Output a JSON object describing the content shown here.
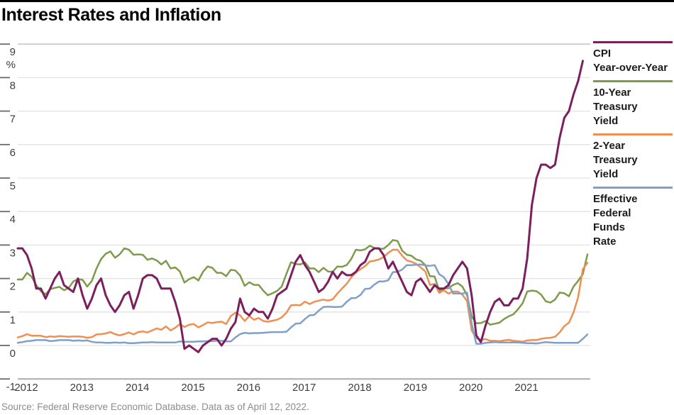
{
  "title": "Interest Rates and Inflation",
  "source": "Source: Federal Reserve Economic Database. Data as of April 12, 2022.",
  "legend": {
    "items": [
      {
        "id": "cpi",
        "label": "CPI\nYear-over-Year"
      },
      {
        "id": "treasury-10y",
        "label": "10-Year\nTreasury\nYield"
      },
      {
        "id": "treasury-2y",
        "label": "2-Year\nTreasury\nYield"
      },
      {
        "id": "effr",
        "label": "Effective\nFederal\nFunds\nRate"
      }
    ]
  },
  "chart_data": {
    "type": "line",
    "title": "Interest Rates and Inflation",
    "x_frequency": "monthly",
    "x_start": "2012-01",
    "x_end": "2022-04",
    "x_year_labels": [
      "2012",
      "2013",
      "2014",
      "2015",
      "2016",
      "2017",
      "2018",
      "2019",
      "2020",
      "2021"
    ],
    "y_unit": "%",
    "y_ticks": [
      9,
      8,
      7,
      6,
      5,
      4,
      3,
      2,
      1,
      0,
      -1
    ],
    "ylim": [
      -1,
      9.4
    ],
    "grid": "horizontal",
    "legend_position": "right",
    "axis_colors": {
      "gridline": "#e3e3e3",
      "plot_top_line": "#c8c8c8",
      "bottom_axis": "#b8b8b8",
      "tick": "#6a6a6a",
      "tick_label": "#3d3d3d"
    },
    "series": [
      {
        "name": "CPI Year-over-Year",
        "id": "cpi",
        "color": "#7c1f5e",
        "values": [
          2.9,
          2.9,
          2.7,
          2.3,
          1.7,
          1.7,
          1.4,
          1.7,
          2.0,
          2.2,
          1.8,
          1.7,
          1.6,
          2.0,
          1.5,
          1.1,
          1.4,
          1.8,
          2.0,
          1.5,
          1.2,
          1.0,
          1.2,
          1.5,
          1.6,
          1.1,
          1.5,
          2.0,
          2.1,
          2.1,
          2.0,
          1.7,
          1.7,
          1.7,
          1.3,
          0.8,
          -0.1,
          0.0,
          -0.1,
          -0.2,
          0.0,
          0.1,
          0.2,
          0.2,
          0.0,
          0.2,
          0.5,
          0.7,
          1.4,
          1.0,
          0.9,
          1.1,
          1.0,
          1.0,
          0.8,
          1.1,
          1.5,
          1.6,
          1.7,
          2.1,
          2.5,
          2.7,
          2.4,
          2.2,
          1.9,
          1.6,
          1.7,
          1.9,
          2.2,
          2.0,
          2.2,
          2.1,
          2.1,
          2.2,
          2.4,
          2.5,
          2.8,
          2.9,
          2.9,
          2.7,
          2.3,
          2.5,
          2.2,
          1.9,
          1.6,
          1.5,
          1.9,
          2.0,
          1.8,
          1.6,
          1.8,
          1.7,
          1.7,
          1.8,
          2.1,
          2.3,
          2.5,
          2.3,
          1.5,
          0.3,
          0.1,
          0.6,
          1.0,
          1.3,
          1.4,
          1.2,
          1.2,
          1.4,
          1.4,
          1.7,
          2.6,
          4.2,
          5.0,
          5.4,
          5.4,
          5.3,
          5.4,
          6.2,
          6.8,
          7.0,
          7.5,
          7.9,
          8.5,
          null
        ]
      },
      {
        "name": "10-Year Treasury Yield",
        "id": "treasury-10y",
        "color": "#7d9b4b",
        "values": [
          1.97,
          1.97,
          2.17,
          2.05,
          1.8,
          1.62,
          1.53,
          1.68,
          1.72,
          1.75,
          1.65,
          1.72,
          1.91,
          1.98,
          1.96,
          1.76,
          1.93,
          2.3,
          2.58,
          2.74,
          2.81,
          2.62,
          2.72,
          2.9,
          2.86,
          2.71,
          2.72,
          2.71,
          2.56,
          2.6,
          2.54,
          2.42,
          2.53,
          2.3,
          2.33,
          2.21,
          1.88,
          1.98,
          2.04,
          1.94,
          2.2,
          2.36,
          2.32,
          2.17,
          2.17,
          2.07,
          2.26,
          2.24,
          2.09,
          1.78,
          1.89,
          1.81,
          1.81,
          1.64,
          1.5,
          1.56,
          1.63,
          1.76,
          2.14,
          2.49,
          2.43,
          2.42,
          2.48,
          2.3,
          2.3,
          2.19,
          2.32,
          2.21,
          2.2,
          2.36,
          2.35,
          2.4,
          2.58,
          2.86,
          2.84,
          2.87,
          2.98,
          2.91,
          2.89,
          2.89,
          3.0,
          3.15,
          3.12,
          2.83,
          2.71,
          2.68,
          2.57,
          2.53,
          2.4,
          2.07,
          2.06,
          1.63,
          1.7,
          1.71,
          1.81,
          1.86,
          1.76,
          1.5,
          0.87,
          0.66,
          0.67,
          0.73,
          0.62,
          0.65,
          0.68,
          0.79,
          0.87,
          0.93,
          1.08,
          1.26,
          1.61,
          1.64,
          1.62,
          1.52,
          1.32,
          1.28,
          1.37,
          1.58,
          1.56,
          1.47,
          1.76,
          1.93,
          2.13,
          2.72
        ]
      },
      {
        "name": "2-Year Treasury Yield",
        "id": "treasury-2y",
        "color": "#f08f52",
        "values": [
          0.24,
          0.28,
          0.34,
          0.29,
          0.29,
          0.29,
          0.25,
          0.27,
          0.26,
          0.28,
          0.27,
          0.26,
          0.27,
          0.27,
          0.26,
          0.23,
          0.25,
          0.33,
          0.34,
          0.36,
          0.4,
          0.34,
          0.3,
          0.34,
          0.39,
          0.33,
          0.4,
          0.42,
          0.39,
          0.45,
          0.51,
          0.47,
          0.57,
          0.45,
          0.53,
          0.64,
          0.55,
          0.62,
          0.64,
          0.54,
          0.61,
          0.69,
          0.67,
          0.7,
          0.71,
          0.64,
          0.88,
          0.98,
          0.9,
          0.73,
          0.88,
          0.77,
          0.82,
          0.73,
          0.71,
          0.74,
          0.77,
          0.84,
          0.98,
          1.2,
          1.21,
          1.2,
          1.31,
          1.24,
          1.3,
          1.34,
          1.37,
          1.34,
          1.38,
          1.55,
          1.7,
          1.84,
          2.03,
          2.18,
          2.28,
          2.37,
          2.51,
          2.53,
          2.57,
          2.64,
          2.77,
          2.86,
          2.86,
          2.68,
          2.54,
          2.5,
          2.44,
          2.33,
          2.21,
          1.81,
          1.84,
          1.57,
          1.65,
          1.55,
          1.61,
          1.61,
          1.52,
          1.33,
          0.45,
          0.22,
          0.17,
          0.19,
          0.14,
          0.14,
          0.13,
          0.15,
          0.17,
          0.14,
          0.13,
          0.11,
          0.15,
          0.16,
          0.16,
          0.2,
          0.22,
          0.23,
          0.26,
          0.39,
          0.58,
          0.68,
          0.99,
          1.44,
          2.28,
          2.47
        ]
      },
      {
        "name": "Effective Federal Funds Rate",
        "id": "effr",
        "color": "#7fa0c8",
        "values": [
          0.08,
          0.1,
          0.13,
          0.14,
          0.16,
          0.16,
          0.16,
          0.13,
          0.14,
          0.16,
          0.16,
          0.16,
          0.14,
          0.15,
          0.14,
          0.15,
          0.11,
          0.09,
          0.09,
          0.08,
          0.08,
          0.09,
          0.08,
          0.09,
          0.07,
          0.07,
          0.08,
          0.09,
          0.09,
          0.1,
          0.09,
          0.09,
          0.09,
          0.09,
          0.09,
          0.12,
          0.11,
          0.11,
          0.11,
          0.12,
          0.12,
          0.13,
          0.13,
          0.14,
          0.14,
          0.12,
          0.12,
          0.24,
          0.34,
          0.38,
          0.36,
          0.37,
          0.37,
          0.38,
          0.39,
          0.4,
          0.4,
          0.4,
          0.41,
          0.54,
          0.65,
          0.66,
          0.79,
          0.9,
          0.91,
          1.04,
          1.15,
          1.16,
          1.15,
          1.15,
          1.16,
          1.3,
          1.41,
          1.42,
          1.51,
          1.69,
          1.7,
          1.82,
          1.91,
          1.91,
          1.95,
          2.19,
          2.2,
          2.27,
          2.4,
          2.4,
          2.41,
          2.42,
          2.39,
          2.38,
          2.4,
          2.13,
          2.04,
          1.83,
          1.55,
          1.55,
          1.55,
          1.58,
          0.65,
          0.05,
          0.05,
          0.08,
          0.09,
          0.1,
          0.09,
          0.09,
          0.09,
          0.09,
          0.09,
          0.08,
          0.07,
          0.07,
          0.06,
          0.08,
          0.1,
          0.09,
          0.08,
          0.08,
          0.08,
          0.08,
          0.08,
          0.08,
          0.2,
          0.33
        ]
      }
    ]
  }
}
